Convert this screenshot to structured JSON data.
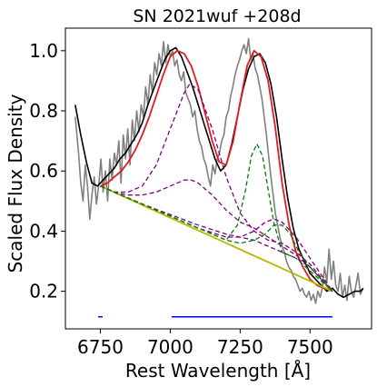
{
  "chart_data": {
    "type": "line",
    "title": "SN 2021wuf  +208d",
    "xlabel": "Rest Wavelength [Å]",
    "ylabel": "Scaled Flux Density",
    "xlim": [
      6625,
      7720
    ],
    "ylim": [
      0.075,
      1.075
    ],
    "xticks": [
      6750,
      7000,
      7250,
      7500
    ],
    "xtick_labels": [
      "6750",
      "7000",
      "7250",
      "7500"
    ],
    "yticks": [
      0.2,
      0.4,
      0.6,
      0.8,
      1.0
    ],
    "ytick_labels": [
      "0.2",
      "0.4",
      "0.6",
      "0.8",
      "1.0"
    ],
    "grid": false,
    "colors": {
      "raw": "#808080",
      "smoothed": "#000000",
      "total_fit": "#e41a1c",
      "continuum": "#b5b800",
      "broad_components": "#800080",
      "narrow_components": "#008000",
      "ranges": "#0000ff"
    },
    "series": [
      {
        "style": "gray raw spectrum",
        "x": [
          6660,
          6672,
          6680,
          6688,
          6696,
          6704,
          6712,
          6720,
          6728,
          6736,
          6744,
          6752,
          6760,
          6768,
          6776,
          6784,
          6792,
          6800,
          6808,
          6816,
          6824,
          6832,
          6840,
          6848,
          6856,
          6864,
          6872,
          6880,
          6888,
          6896,
          6904,
          6912,
          6920,
          6928,
          6936,
          6944,
          6952,
          6960,
          6968,
          6976,
          6984,
          6992,
          7000,
          7008,
          7016,
          7024,
          7032,
          7040,
          7048,
          7056,
          7064,
          7072,
          7080,
          7088,
          7096,
          7104,
          7112,
          7120,
          7128,
          7136,
          7144,
          7152,
          7160,
          7168,
          7176,
          7184,
          7192,
          7200,
          7208,
          7216,
          7224,
          7232,
          7240,
          7248,
          7256,
          7264,
          7272,
          7280,
          7288,
          7296,
          7304,
          7312,
          7320,
          7328,
          7336,
          7344,
          7352,
          7360,
          7368,
          7376,
          7384,
          7392,
          7400,
          7408,
          7416,
          7424,
          7432,
          7440,
          7448,
          7456,
          7464,
          7472,
          7480,
          7488,
          7496,
          7504,
          7512,
          7520,
          7528,
          7536,
          7544,
          7552,
          7560,
          7568,
          7576,
          7584,
          7592,
          7600,
          7608,
          7616,
          7624,
          7632,
          7640,
          7648,
          7656,
          7664,
          7672,
          7680,
          7690
        ],
        "y": [
          0.78,
          0.66,
          0.56,
          0.5,
          0.62,
          0.55,
          0.44,
          0.52,
          0.58,
          0.49,
          0.55,
          0.64,
          0.53,
          0.6,
          0.5,
          0.64,
          0.57,
          0.66,
          0.62,
          0.7,
          0.56,
          0.72,
          0.64,
          0.74,
          0.62,
          0.77,
          0.7,
          0.8,
          0.73,
          0.82,
          0.78,
          0.88,
          0.82,
          0.92,
          0.86,
          0.96,
          0.92,
          0.99,
          0.95,
          1.03,
          0.96,
          1.02,
          0.98,
          1.0,
          0.95,
          0.97,
          0.92,
          0.9,
          0.93,
          0.86,
          0.84,
          0.82,
          0.78,
          0.8,
          0.74,
          0.7,
          0.68,
          0.64,
          0.62,
          0.58,
          0.55,
          0.62,
          0.59,
          0.64,
          0.66,
          0.7,
          0.72,
          0.78,
          0.8,
          0.85,
          0.88,
          0.92,
          0.95,
          0.97,
          1.0,
          1.02,
          0.99,
          1.04,
          0.97,
          0.99,
          0.94,
          0.92,
          0.88,
          0.84,
          0.78,
          0.72,
          0.65,
          0.58,
          0.52,
          0.46,
          0.42,
          0.38,
          0.35,
          0.33,
          0.3,
          0.28,
          0.27,
          0.25,
          0.24,
          0.22,
          0.2,
          0.21,
          0.19,
          0.18,
          0.2,
          0.17,
          0.19,
          0.16,
          0.2,
          0.18,
          0.21,
          0.28,
          0.23,
          0.34,
          0.24,
          0.3,
          0.22,
          0.2,
          0.26,
          0.18,
          0.22,
          0.17,
          0.25,
          0.2,
          0.18,
          0.22,
          0.26,
          0.19,
          0.21
        ]
      },
      {
        "style": "black smoothed spectrum",
        "x": [
          6660,
          6680,
          6700,
          6720,
          6740,
          6760,
          6780,
          6800,
          6820,
          6840,
          6860,
          6880,
          6900,
          6920,
          6940,
          6960,
          6980,
          7000,
          7020,
          7040,
          7060,
          7080,
          7100,
          7120,
          7140,
          7160,
          7180,
          7200,
          7220,
          7240,
          7260,
          7280,
          7300,
          7320,
          7340,
          7360,
          7380,
          7400,
          7420,
          7440,
          7460,
          7480,
          7500,
          7520,
          7540,
          7560,
          7580,
          7600,
          7620,
          7640,
          7660,
          7680,
          7690
        ],
        "y": [
          0.82,
          0.72,
          0.63,
          0.56,
          0.55,
          0.57,
          0.59,
          0.61,
          0.64,
          0.66,
          0.69,
          0.72,
          0.76,
          0.82,
          0.87,
          0.92,
          0.97,
          1.0,
          1.01,
          0.98,
          0.93,
          0.88,
          0.82,
          0.76,
          0.7,
          0.64,
          0.6,
          0.62,
          0.69,
          0.78,
          0.87,
          0.94,
          0.98,
          0.99,
          0.96,
          0.89,
          0.78,
          0.64,
          0.51,
          0.41,
          0.34,
          0.3,
          0.26,
          0.24,
          0.22,
          0.2,
          0.21,
          0.19,
          0.18,
          0.19,
          0.2,
          0.2,
          0.21
        ]
      },
      {
        "style": "red total fit",
        "x": [
          6750,
          6775,
          6800,
          6825,
          6850,
          6875,
          6900,
          6925,
          6950,
          6975,
          7000,
          7025,
          7050,
          7075,
          7100,
          7125,
          7150,
          7175,
          7200,
          7225,
          7250,
          7275,
          7300,
          7325,
          7350,
          7375,
          7400,
          7425,
          7450,
          7475,
          7500,
          7525,
          7550,
          7580
        ],
        "y": [
          0.55,
          0.56,
          0.58,
          0.6,
          0.63,
          0.67,
          0.72,
          0.78,
          0.85,
          0.92,
          0.98,
          1.0,
          0.99,
          0.95,
          0.88,
          0.79,
          0.7,
          0.63,
          0.62,
          0.7,
          0.83,
          0.95,
          1.0,
          0.98,
          0.9,
          0.75,
          0.56,
          0.42,
          0.33,
          0.28,
          0.24,
          0.22,
          0.21,
          0.2
        ]
      },
      {
        "style": "yellow-green continuum",
        "x": [
          6750,
          7580
        ],
        "y": [
          0.55,
          0.2
        ]
      },
      {
        "style": "purple dashed broad component 1",
        "x": [
          6750,
          6800,
          6850,
          6900,
          6950,
          7000,
          7050,
          7070,
          7100,
          7150,
          7200,
          7250,
          7300,
          7350,
          7400,
          7450,
          7500,
          7580
        ],
        "y": [
          0.55,
          0.53,
          0.53,
          0.55,
          0.62,
          0.74,
          0.86,
          0.89,
          0.87,
          0.74,
          0.58,
          0.46,
          0.4,
          0.37,
          0.36,
          0.33,
          0.29,
          0.2
        ]
      },
      {
        "style": "purple dashed broad component 2",
        "x": [
          6750,
          6800,
          6850,
          6900,
          6950,
          7000,
          7050,
          7075,
          7100,
          7150,
          7200,
          7250,
          7300,
          7350,
          7400,
          7450,
          7500,
          7580
        ],
        "y": [
          0.55,
          0.53,
          0.52,
          0.52,
          0.53,
          0.55,
          0.57,
          0.57,
          0.56,
          0.52,
          0.47,
          0.43,
          0.41,
          0.38,
          0.35,
          0.32,
          0.28,
          0.2
        ]
      },
      {
        "style": "purple dashed broad component 3",
        "x": [
          6750,
          6900,
          7100,
          7200,
          7250,
          7300,
          7350,
          7400,
          7450,
          7500,
          7580
        ],
        "y": [
          0.55,
          0.49,
          0.42,
          0.39,
          0.38,
          0.37,
          0.35,
          0.33,
          0.31,
          0.28,
          0.2
        ]
      },
      {
        "style": "purple dashed broad component 4",
        "x": [
          6750,
          6950,
          7100,
          7200,
          7250,
          7300,
          7340,
          7370,
          7400,
          7450,
          7500,
          7580
        ],
        "y": [
          0.55,
          0.47,
          0.41,
          0.38,
          0.38,
          0.4,
          0.43,
          0.44,
          0.43,
          0.38,
          0.31,
          0.2
        ]
      },
      {
        "style": "green dashed narrow component 1",
        "x": [
          6750,
          7100,
          7200,
          7240,
          7270,
          7290,
          7310,
          7330,
          7350,
          7370,
          7400,
          7450,
          7580
        ],
        "y": [
          0.55,
          0.41,
          0.37,
          0.42,
          0.54,
          0.65,
          0.69,
          0.65,
          0.54,
          0.43,
          0.33,
          0.31,
          0.2
        ]
      },
      {
        "style": "green dashed narrow component 2",
        "x": [
          6750,
          7100,
          7200,
          7250,
          7300,
          7340,
          7370,
          7400,
          7430,
          7460,
          7500,
          7580
        ],
        "y": [
          0.55,
          0.41,
          0.37,
          0.36,
          0.37,
          0.39,
          0.42,
          0.42,
          0.39,
          0.33,
          0.28,
          0.2
        ]
      }
    ],
    "ranges": [
      {
        "xmin": 6742,
        "xmax": 6758,
        "y": 0.115
      },
      {
        "xmin": 7005,
        "xmax": 7580,
        "y": 0.115
      }
    ]
  }
}
